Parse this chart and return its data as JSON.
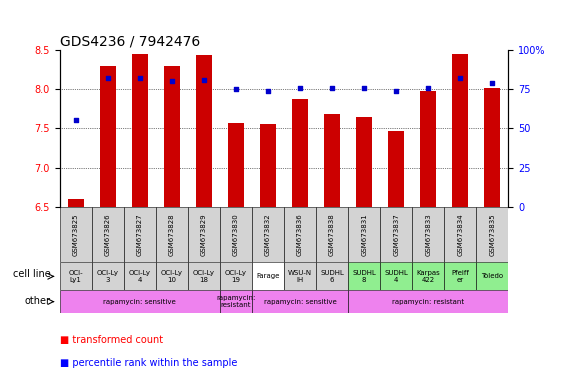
{
  "title": "GDS4236 / 7942476",
  "samples": [
    "GSM673825",
    "GSM673826",
    "GSM673827",
    "GSM673828",
    "GSM673829",
    "GSM673830",
    "GSM673832",
    "GSM673836",
    "GSM673838",
    "GSM673831",
    "GSM673837",
    "GSM673833",
    "GSM673834",
    "GSM673835"
  ],
  "transformed_count": [
    6.6,
    8.3,
    8.45,
    8.3,
    8.43,
    7.57,
    7.55,
    7.87,
    7.68,
    7.65,
    7.47,
    7.97,
    8.45,
    8.02
  ],
  "percentile_rank": [
    55,
    82,
    82,
    80,
    81,
    75,
    74,
    76,
    76,
    76,
    74,
    76,
    82,
    79
  ],
  "ylim_left": [
    6.5,
    8.5
  ],
  "ylim_right": [
    0,
    100
  ],
  "yticks_left": [
    6.5,
    7.0,
    7.5,
    8.0,
    8.5
  ],
  "yticks_right": [
    0,
    25,
    50,
    75,
    100
  ],
  "cell_lines": [
    "OCI-\nLy1",
    "OCI-Ly\n3",
    "OCI-Ly\n4",
    "OCI-Ly\n10",
    "OCI-Ly\n18",
    "OCI-Ly\n19",
    "Farage",
    "WSU-N\nIH",
    "SUDHL\n6",
    "SUDHL\n8",
    "SUDHL\n4",
    "Karpas\n422",
    "Pfeiff\ner",
    "Toledo"
  ],
  "cell_line_colors": [
    "#d3d3d3",
    "#d3d3d3",
    "#d3d3d3",
    "#d3d3d3",
    "#d3d3d3",
    "#d3d3d3",
    "#ffffff",
    "#d3d3d3",
    "#d3d3d3",
    "#90ee90",
    "#90ee90",
    "#90ee90",
    "#90ee90",
    "#90ee90"
  ],
  "other_regions": [
    {
      "text": "rapamycin: sensitive",
      "start": 0,
      "end": 5,
      "color": "#ee82ee"
    },
    {
      "text": "rapamycin:\nresistant",
      "start": 5,
      "end": 6,
      "color": "#ee82ee"
    },
    {
      "text": "rapamycin: sensitive",
      "start": 6,
      "end": 9,
      "color": "#ee82ee"
    },
    {
      "text": "rapamycin: resistant",
      "start": 9,
      "end": 14,
      "color": "#ee82ee"
    }
  ],
  "bar_color": "#cc0000",
  "dot_color": "#0000cc",
  "bar_width": 0.5,
  "title_fontsize": 10,
  "tick_fontsize": 7,
  "label_fontsize": 7,
  "gsm_fontsize": 5,
  "cell_fontsize": 5,
  "other_fontsize": 5,
  "legend_fontsize": 7
}
